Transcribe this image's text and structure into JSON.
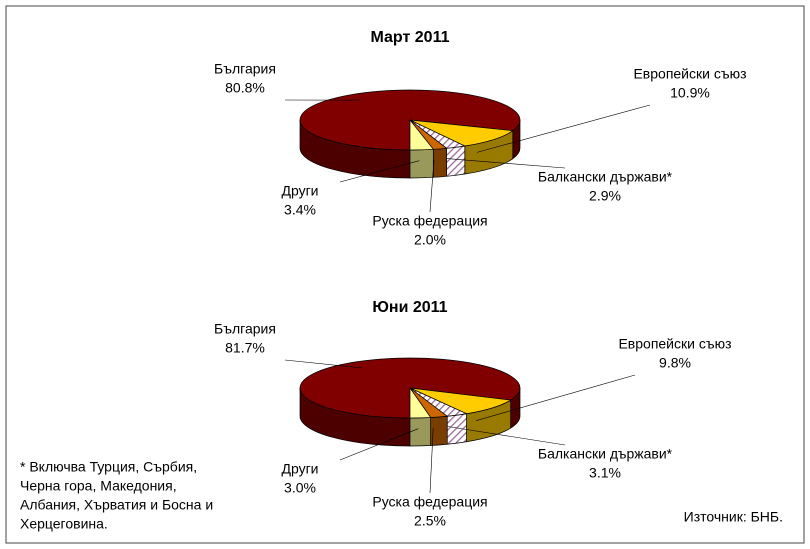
{
  "chart_data": [
    {
      "type": "pie3d",
      "title": "Март 2011",
      "categories": [
        "България",
        "Европейски съюз",
        "Балкански държави*",
        "Руска федерация",
        "Други"
      ],
      "values": [
        80.8,
        10.9,
        2.9,
        2.0,
        3.4
      ],
      "value_labels": [
        "80.8%",
        "10.9%",
        "2.9%",
        "2.0%",
        "3.4%"
      ],
      "colors": [
        "#800000",
        "#ffcc00",
        "#996699",
        "#cc6600",
        "#ffff99"
      ]
    },
    {
      "type": "pie3d",
      "title": "Юни 2011",
      "categories": [
        "България",
        "Европейски съюз",
        "Балкански държави*",
        "Руска федерация",
        "Други"
      ],
      "values": [
        81.7,
        9.8,
        3.1,
        2.5,
        3.0
      ],
      "value_labels": [
        "81.7%",
        "9.8%",
        "3.1%",
        "2.5%",
        "3.0%"
      ],
      "colors": [
        "#800000",
        "#ffcc00",
        "#996699",
        "#cc6600",
        "#ffff99"
      ]
    }
  ],
  "footnote": [
    "* Включва Турция, Сърбия,",
    "Черна гора, Македония,",
    "Албания, Хърватия и Босна и",
    "Херцеговина."
  ],
  "source": "Източник: БНБ."
}
